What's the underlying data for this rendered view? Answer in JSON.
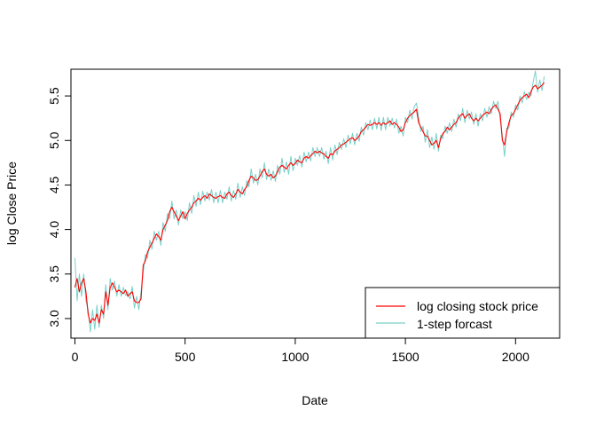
{
  "chart_data": {
    "type": "line",
    "title": "",
    "xlabel": "Date",
    "ylabel": "log Close Price",
    "xlim": [
      -18,
      2200
    ],
    "ylim": [
      2.78,
      5.8
    ],
    "x_ticks": [
      0,
      500,
      1000,
      1500,
      2000
    ],
    "y_ticks": [
      3.0,
      3.5,
      4.0,
      4.5,
      5.0,
      5.5
    ],
    "x_tick_labels": [
      "0",
      "500",
      "1000",
      "1500",
      "2000"
    ],
    "y_tick_labels": [
      "3.0",
      "3.5",
      "4.0",
      "4.5",
      "5.0",
      "5.5"
    ],
    "grid": false,
    "legend_position": "bottom-right",
    "series": [
      {
        "name": "log closing stock price",
        "color": "#ff0000",
        "x": [
          0,
          10,
          20,
          30,
          40,
          50,
          60,
          70,
          80,
          90,
          100,
          110,
          120,
          130,
          140,
          150,
          160,
          170,
          180,
          190,
          200,
          210,
          220,
          230,
          240,
          250,
          260,
          270,
          280,
          290,
          300,
          310,
          320,
          330,
          340,
          350,
          360,
          370,
          380,
          390,
          400,
          410,
          420,
          430,
          440,
          450,
          460,
          470,
          480,
          490,
          500,
          510,
          520,
          530,
          540,
          550,
          560,
          570,
          580,
          590,
          600,
          610,
          620,
          630,
          640,
          650,
          660,
          670,
          680,
          690,
          700,
          710,
          720,
          730,
          740,
          750,
          760,
          770,
          780,
          790,
          800,
          810,
          820,
          830,
          840,
          850,
          860,
          870,
          880,
          890,
          900,
          910,
          920,
          930,
          940,
          950,
          960,
          970,
          980,
          990,
          1000,
          1010,
          1020,
          1030,
          1040,
          1050,
          1060,
          1070,
          1080,
          1090,
          1100,
          1110,
          1120,
          1130,
          1140,
          1150,
          1160,
          1170,
          1180,
          1190,
          1200,
          1210,
          1220,
          1230,
          1240,
          1250,
          1260,
          1270,
          1280,
          1290,
          1300,
          1310,
          1320,
          1330,
          1340,
          1350,
          1360,
          1370,
          1380,
          1390,
          1400,
          1410,
          1420,
          1430,
          1440,
          1450,
          1460,
          1470,
          1480,
          1490,
          1500,
          1510,
          1520,
          1530,
          1540,
          1550,
          1560,
          1570,
          1580,
          1590,
          1600,
          1610,
          1620,
          1630,
          1640,
          1650,
          1660,
          1670,
          1680,
          1690,
          1700,
          1710,
          1720,
          1730,
          1740,
          1750,
          1760,
          1770,
          1780,
          1790,
          1800,
          1810,
          1820,
          1830,
          1840,
          1850,
          1860,
          1870,
          1880,
          1890,
          1900,
          1910,
          1920,
          1930,
          1940,
          1950,
          1960,
          1970,
          1980,
          1990,
          2000,
          2010,
          2020,
          2030,
          2040,
          2050,
          2060,
          2070,
          2080,
          2090,
          2100,
          2110,
          2120,
          2130
        ],
        "y": [
          3.35,
          3.45,
          3.3,
          3.4,
          3.45,
          3.3,
          3.05,
          2.95,
          3.0,
          2.98,
          3.05,
          2.95,
          3.1,
          3.05,
          3.3,
          3.15,
          3.35,
          3.4,
          3.35,
          3.3,
          3.32,
          3.3,
          3.28,
          3.32,
          3.25,
          3.28,
          3.3,
          3.2,
          3.18,
          3.18,
          3.22,
          3.6,
          3.65,
          3.75,
          3.8,
          3.85,
          3.9,
          3.95,
          3.92,
          3.88,
          4.0,
          4.05,
          4.1,
          4.2,
          4.25,
          4.2,
          4.15,
          4.1,
          4.15,
          4.2,
          4.12,
          4.18,
          4.22,
          4.25,
          4.3,
          4.32,
          4.35,
          4.33,
          4.36,
          4.38,
          4.35,
          4.4,
          4.38,
          4.36,
          4.35,
          4.37,
          4.38,
          4.36,
          4.35,
          4.4,
          4.42,
          4.38,
          4.36,
          4.4,
          4.45,
          4.42,
          4.4,
          4.45,
          4.48,
          4.55,
          4.6,
          4.58,
          4.55,
          4.56,
          4.6,
          4.65,
          4.68,
          4.62,
          4.6,
          4.62,
          4.58,
          4.6,
          4.65,
          4.7,
          4.72,
          4.7,
          4.68,
          4.72,
          4.75,
          4.72,
          4.74,
          4.78,
          4.76,
          4.75,
          4.8,
          4.82,
          4.8,
          4.83,
          4.85,
          4.88,
          4.86,
          4.88,
          4.86,
          4.85,
          4.82,
          4.8,
          4.85,
          4.84,
          4.88,
          4.9,
          4.92,
          4.95,
          4.96,
          4.98,
          5.0,
          5.02,
          5.03,
          5.0,
          5.02,
          5.05,
          5.1,
          5.12,
          5.15,
          5.18,
          5.17,
          5.18,
          5.2,
          5.18,
          5.2,
          5.17,
          5.2,
          5.18,
          5.2,
          5.22,
          5.18,
          5.2,
          5.18,
          5.15,
          5.1,
          5.12,
          5.2,
          5.25,
          5.28,
          5.3,
          5.32,
          5.35,
          5.2,
          5.15,
          5.1,
          5.05,
          5.05,
          5.0,
          4.95,
          4.97,
          5.0,
          4.92,
          5.02,
          5.08,
          5.1,
          5.15,
          5.12,
          5.15,
          5.18,
          5.2,
          5.25,
          5.28,
          5.3,
          5.25,
          5.28,
          5.3,
          5.25,
          5.22,
          5.25,
          5.22,
          5.25,
          5.28,
          5.3,
          5.32,
          5.3,
          5.35,
          5.38,
          5.4,
          5.35,
          5.3,
          5.0,
          4.95,
          5.1,
          5.2,
          5.28,
          5.3,
          5.35,
          5.4,
          5.45,
          5.48,
          5.5,
          5.52,
          5.48,
          5.55,
          5.6,
          5.62,
          5.58,
          5.6,
          5.62,
          5.65
        ]
      },
      {
        "name": "1-step forcast",
        "color": "#7ad0c8",
        "x": [
          0,
          10,
          20,
          30,
          40,
          50,
          60,
          70,
          80,
          90,
          100,
          110,
          120,
          130,
          140,
          150,
          160,
          170,
          180,
          190,
          200,
          210,
          220,
          230,
          240,
          250,
          260,
          270,
          280,
          290,
          300,
          310,
          320,
          330,
          340,
          350,
          360,
          370,
          380,
          390,
          400,
          410,
          420,
          430,
          440,
          450,
          460,
          470,
          480,
          490,
          500,
          510,
          520,
          530,
          540,
          550,
          560,
          570,
          580,
          590,
          600,
          610,
          620,
          630,
          640,
          650,
          660,
          670,
          680,
          690,
          700,
          710,
          720,
          730,
          740,
          750,
          760,
          770,
          780,
          790,
          800,
          810,
          820,
          830,
          840,
          850,
          860,
          870,
          880,
          890,
          900,
          910,
          920,
          930,
          940,
          950,
          960,
          970,
          980,
          990,
          1000,
          1010,
          1020,
          1030,
          1040,
          1050,
          1060,
          1070,
          1080,
          1090,
          1100,
          1110,
          1120,
          1130,
          1140,
          1150,
          1160,
          1170,
          1180,
          1190,
          1200,
          1210,
          1220,
          1230,
          1240,
          1250,
          1260,
          1270,
          1280,
          1290,
          1300,
          1310,
          1320,
          1330,
          1340,
          1350,
          1360,
          1370,
          1380,
          1390,
          1400,
          1410,
          1420,
          1430,
          1440,
          1450,
          1460,
          1470,
          1480,
          1490,
          1500,
          1510,
          1520,
          1530,
          1540,
          1550,
          1560,
          1570,
          1580,
          1590,
          1600,
          1610,
          1620,
          1630,
          1640,
          1650,
          1660,
          1670,
          1680,
          1690,
          1700,
          1710,
          1720,
          1730,
          1740,
          1750,
          1760,
          1770,
          1780,
          1790,
          1800,
          1810,
          1820,
          1830,
          1840,
          1850,
          1860,
          1870,
          1880,
          1890,
          1900,
          1910,
          1920,
          1930,
          1940,
          1950,
          1960,
          1970,
          1980,
          1990,
          2000,
          2010,
          2020,
          2030,
          2040,
          2050,
          2060,
          2070,
          2080,
          2090,
          2100,
          2110,
          2120,
          2130
        ],
        "y": [
          3.68,
          3.2,
          3.5,
          3.25,
          3.5,
          3.2,
          3.1,
          2.85,
          3.1,
          2.88,
          3.15,
          2.9,
          3.15,
          3.0,
          3.38,
          3.1,
          3.45,
          3.32,
          3.42,
          3.25,
          3.38,
          3.25,
          3.35,
          3.26,
          3.3,
          3.22,
          3.36,
          3.12,
          3.25,
          3.1,
          3.3,
          3.52,
          3.72,
          3.68,
          3.88,
          3.78,
          3.98,
          3.88,
          3.98,
          3.82,
          4.08,
          3.98,
          4.18,
          4.12,
          4.32,
          4.12,
          4.22,
          4.05,
          4.22,
          4.12,
          4.2,
          4.1,
          4.3,
          4.18,
          4.38,
          4.26,
          4.42,
          4.28,
          4.43,
          4.32,
          4.42,
          4.33,
          4.45,
          4.3,
          4.42,
          4.3,
          4.44,
          4.3,
          4.42,
          4.34,
          4.48,
          4.32,
          4.44,
          4.34,
          4.52,
          4.36,
          4.48,
          4.38,
          4.55,
          4.48,
          4.68,
          4.52,
          4.62,
          4.5,
          4.68,
          4.58,
          4.75,
          4.56,
          4.68,
          4.55,
          4.66,
          4.54,
          4.72,
          4.62,
          4.8,
          4.64,
          4.76,
          4.62,
          4.82,
          4.66,
          4.8,
          4.72,
          4.83,
          4.7,
          4.87,
          4.76,
          4.87,
          4.77,
          4.92,
          4.82,
          4.92,
          4.82,
          4.92,
          4.79,
          4.88,
          4.74,
          4.92,
          4.78,
          4.95,
          4.84,
          4.98,
          4.9,
          5.02,
          4.92,
          5.06,
          4.96,
          5.08,
          4.95,
          5.08,
          4.99,
          5.15,
          5.06,
          5.2,
          5.12,
          5.23,
          5.12,
          5.25,
          5.13,
          5.26,
          5.11,
          5.26,
          5.12,
          5.26,
          5.16,
          5.25,
          5.14,
          5.24,
          5.08,
          5.16,
          5.05,
          5.26,
          5.2,
          5.34,
          5.24,
          5.38,
          5.42,
          5.26,
          5.1,
          5.16,
          4.98,
          5.12,
          4.92,
          5.04,
          4.9,
          5.08,
          4.88,
          5.06,
          5.02,
          5.16,
          5.08,
          5.2,
          5.1,
          5.24,
          5.15,
          5.3,
          5.22,
          5.36,
          5.2,
          5.34,
          5.24,
          5.32,
          5.18,
          5.3,
          5.16,
          5.3,
          5.22,
          5.36,
          5.26,
          5.38,
          5.3,
          5.44,
          5.36,
          5.44,
          5.24,
          5.05,
          4.82,
          5.14,
          5.14,
          5.32,
          5.26,
          5.4,
          5.34,
          5.5,
          5.42,
          5.55,
          5.46,
          5.54,
          5.5,
          5.66,
          5.78,
          5.54,
          5.68,
          5.56,
          5.72
        ]
      }
    ]
  }
}
